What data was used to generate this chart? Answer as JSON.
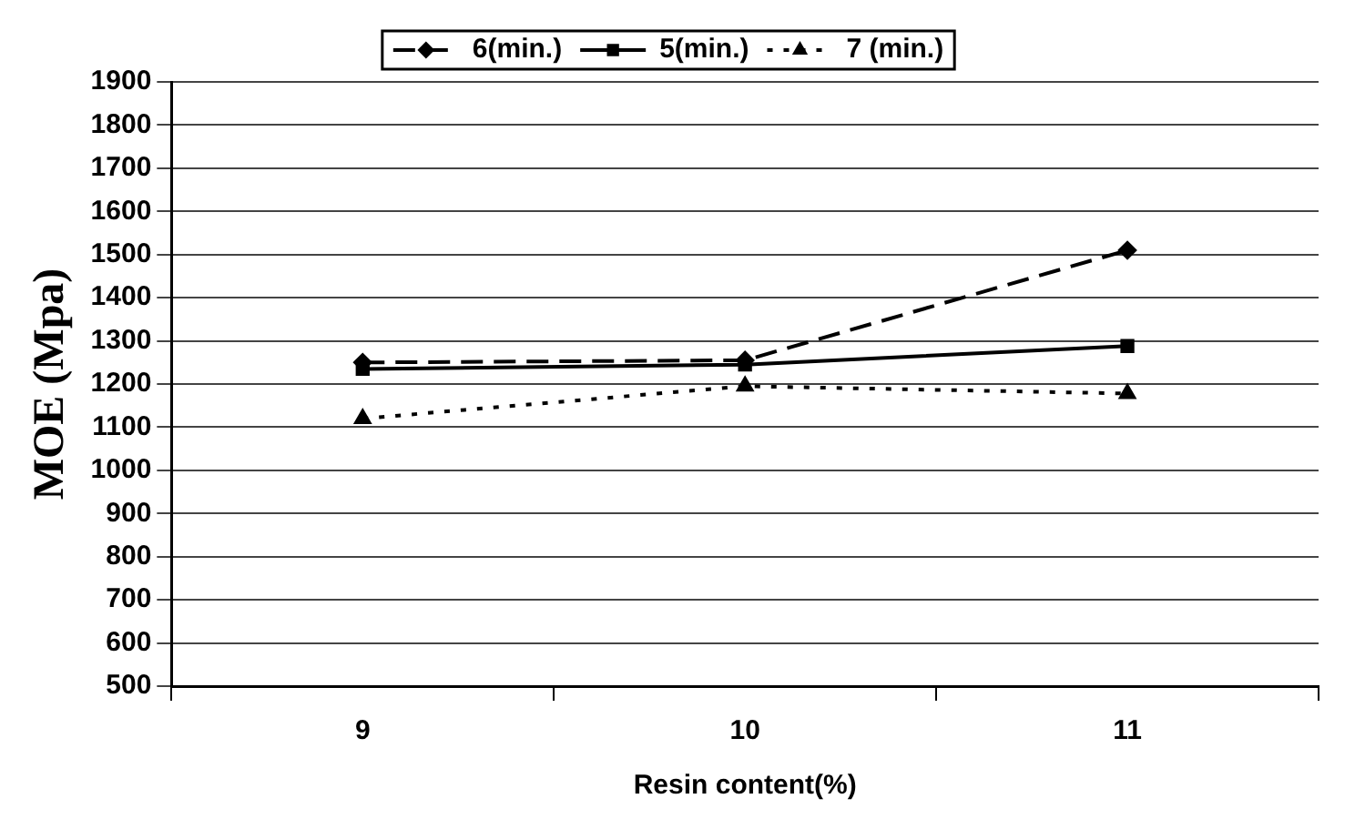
{
  "chart_data": {
    "type": "line",
    "xlabel": "Resin content(%)",
    "ylabel": "MOE (Mpa)",
    "categories": [
      "9",
      "10",
      "11"
    ],
    "series": [
      {
        "name": "6(min.)",
        "color": "#000000",
        "values": [
          1250,
          1255,
          1510
        ],
        "marker": "diamond",
        "line_style": "dashed"
      },
      {
        "name": "5(min.)",
        "color": "#000000",
        "values": [
          1235,
          1245,
          1288
        ],
        "marker": "square",
        "line_style": "solid"
      },
      {
        "name": "7 (min.)",
        "color": "#000000",
        "values": [
          1120,
          1195,
          1178
        ],
        "marker": "triangle",
        "line_style": "dotted"
      }
    ],
    "ylim": [
      500,
      1900
    ],
    "yticks": [
      500,
      600,
      700,
      800,
      900,
      1000,
      1100,
      1200,
      1300,
      1400,
      1500,
      1600,
      1700,
      1800,
      1900
    ],
    "grid": "y",
    "legend": "top"
  }
}
